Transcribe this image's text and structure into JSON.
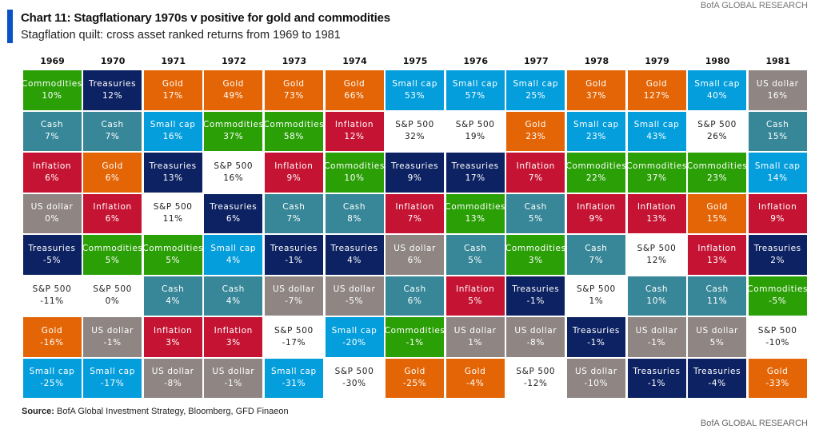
{
  "header": {
    "title": "Chart 11: Stagflationary 1970s v positive for gold and commodities",
    "subtitle": "Stagflation quilt: cross asset ranked returns from 1969 to 1981",
    "brand": "BofA GLOBAL RESEARCH"
  },
  "footer": {
    "source_label": "Source:",
    "source_text": "BofA Global Investment Strategy, Bloomberg, GFD Finaeon",
    "brand": "BofA GLOBAL RESEARCH"
  },
  "chart_data": {
    "type": "table",
    "title": "Chart 11: Stagflationary 1970s v positive for gold and commodities",
    "subtitle": "Stagflation quilt: cross asset ranked returns from 1969 to 1981",
    "colors": {
      "Commodities": "#2a9f06",
      "Treasuries": "#0d2262",
      "Gold": "#e46505",
      "Cash": "#378798",
      "Small cap": "#049edd",
      "Inflation": "#c51433",
      "US dollar": "#8f8684",
      "S&P 500": "#ffffff"
    },
    "columns": [
      {
        "year": "1969",
        "cells": [
          [
            "Commodities",
            "10%"
          ],
          [
            "Cash",
            "7%"
          ],
          [
            "Inflation",
            "6%"
          ],
          [
            "US dollar",
            "0%"
          ],
          [
            "Treasuries",
            "-5%"
          ],
          [
            "S&P 500",
            "-11%"
          ],
          [
            "Gold",
            "-16%"
          ],
          [
            "Small cap",
            "-25%"
          ]
        ]
      },
      {
        "year": "1970",
        "cells": [
          [
            "Treasuries",
            "12%"
          ],
          [
            "Cash",
            "7%"
          ],
          [
            "Gold",
            "6%"
          ],
          [
            "Inflation",
            "6%"
          ],
          [
            "Commodities",
            "5%"
          ],
          [
            "S&P 500",
            "0%"
          ],
          [
            "US dollar",
            "-1%"
          ],
          [
            "Small cap",
            "-17%"
          ]
        ]
      },
      {
        "year": "1971",
        "cells": [
          [
            "Gold",
            "17%"
          ],
          [
            "Small cap",
            "16%"
          ],
          [
            "Treasuries",
            "13%"
          ],
          [
            "S&P 500",
            "11%"
          ],
          [
            "Commodities",
            "5%"
          ],
          [
            "Cash",
            "4%"
          ],
          [
            "Inflation",
            "3%"
          ],
          [
            "US dollar",
            "-8%"
          ]
        ]
      },
      {
        "year": "1972",
        "cells": [
          [
            "Gold",
            "49%"
          ],
          [
            "Commodities",
            "37%"
          ],
          [
            "S&P 500",
            "16%"
          ],
          [
            "Treasuries",
            "6%"
          ],
          [
            "Small cap",
            "4%"
          ],
          [
            "Cash",
            "4%"
          ],
          [
            "Inflation",
            "3%"
          ],
          [
            "US dollar",
            "-1%"
          ]
        ]
      },
      {
        "year": "1973",
        "cells": [
          [
            "Gold",
            "73%"
          ],
          [
            "Commodities",
            "58%"
          ],
          [
            "Inflation",
            "9%"
          ],
          [
            "Cash",
            "7%"
          ],
          [
            "Treasuries",
            "-1%"
          ],
          [
            "US dollar",
            "-7%"
          ],
          [
            "S&P 500",
            "-17%"
          ],
          [
            "Small cap",
            "-31%"
          ]
        ]
      },
      {
        "year": "1974",
        "cells": [
          [
            "Gold",
            "66%"
          ],
          [
            "Inflation",
            "12%"
          ],
          [
            "Commodities",
            "10%"
          ],
          [
            "Cash",
            "8%"
          ],
          [
            "Treasuries",
            "4%"
          ],
          [
            "US dollar",
            "-5%"
          ],
          [
            "Small cap",
            "-20%"
          ],
          [
            "S&P 500",
            "-30%"
          ]
        ]
      },
      {
        "year": "1975",
        "cells": [
          [
            "Small cap",
            "53%"
          ],
          [
            "S&P 500",
            "32%"
          ],
          [
            "Treasuries",
            "9%"
          ],
          [
            "Inflation",
            "7%"
          ],
          [
            "US dollar",
            "6%"
          ],
          [
            "Cash",
            "6%"
          ],
          [
            "Commodities",
            "-1%"
          ],
          [
            "Gold",
            "-25%"
          ]
        ]
      },
      {
        "year": "1976",
        "cells": [
          [
            "Small cap",
            "57%"
          ],
          [
            "S&P 500",
            "19%"
          ],
          [
            "Treasuries",
            "17%"
          ],
          [
            "Commodities",
            "13%"
          ],
          [
            "Cash",
            "5%"
          ],
          [
            "Inflation",
            "5%"
          ],
          [
            "US dollar",
            "1%"
          ],
          [
            "Gold",
            "-4%"
          ]
        ]
      },
      {
        "year": "1977",
        "cells": [
          [
            "Small cap",
            "25%"
          ],
          [
            "Gold",
            "23%"
          ],
          [
            "Inflation",
            "7%"
          ],
          [
            "Cash",
            "5%"
          ],
          [
            "Commodities",
            "3%"
          ],
          [
            "Treasuries",
            "-1%"
          ],
          [
            "US dollar",
            "-8%"
          ],
          [
            "S&P 500",
            "-12%"
          ]
        ]
      },
      {
        "year": "1978",
        "cells": [
          [
            "Gold",
            "37%"
          ],
          [
            "Small cap",
            "23%"
          ],
          [
            "Commodities",
            "22%"
          ],
          [
            "Inflation",
            "9%"
          ],
          [
            "Cash",
            "7%"
          ],
          [
            "S&P 500",
            "1%"
          ],
          [
            "Treasuries",
            "-1%"
          ],
          [
            "US dollar",
            "-10%"
          ]
        ]
      },
      {
        "year": "1979",
        "cells": [
          [
            "Gold",
            "127%"
          ],
          [
            "Small cap",
            "43%"
          ],
          [
            "Commodities",
            "37%"
          ],
          [
            "Inflation",
            "13%"
          ],
          [
            "S&P 500",
            "12%"
          ],
          [
            "Cash",
            "10%"
          ],
          [
            "US dollar",
            "-1%"
          ],
          [
            "Treasuries",
            "-1%"
          ]
        ]
      },
      {
        "year": "1980",
        "cells": [
          [
            "Small cap",
            "40%"
          ],
          [
            "S&P 500",
            "26%"
          ],
          [
            "Commodities",
            "23%"
          ],
          [
            "Gold",
            "15%"
          ],
          [
            "Inflation",
            "13%"
          ],
          [
            "Cash",
            "11%"
          ],
          [
            "US dollar",
            "5%"
          ],
          [
            "Treasuries",
            "-4%"
          ]
        ]
      },
      {
        "year": "1981",
        "cells": [
          [
            "US dollar",
            "16%"
          ],
          [
            "Cash",
            "15%"
          ],
          [
            "Small cap",
            "14%"
          ],
          [
            "Inflation",
            "9%"
          ],
          [
            "Treasuries",
            "2%"
          ],
          [
            "Commodities",
            "-5%"
          ],
          [
            "S&P 500",
            "-10%"
          ],
          [
            "Gold",
            "-33%"
          ]
        ]
      }
    ]
  }
}
